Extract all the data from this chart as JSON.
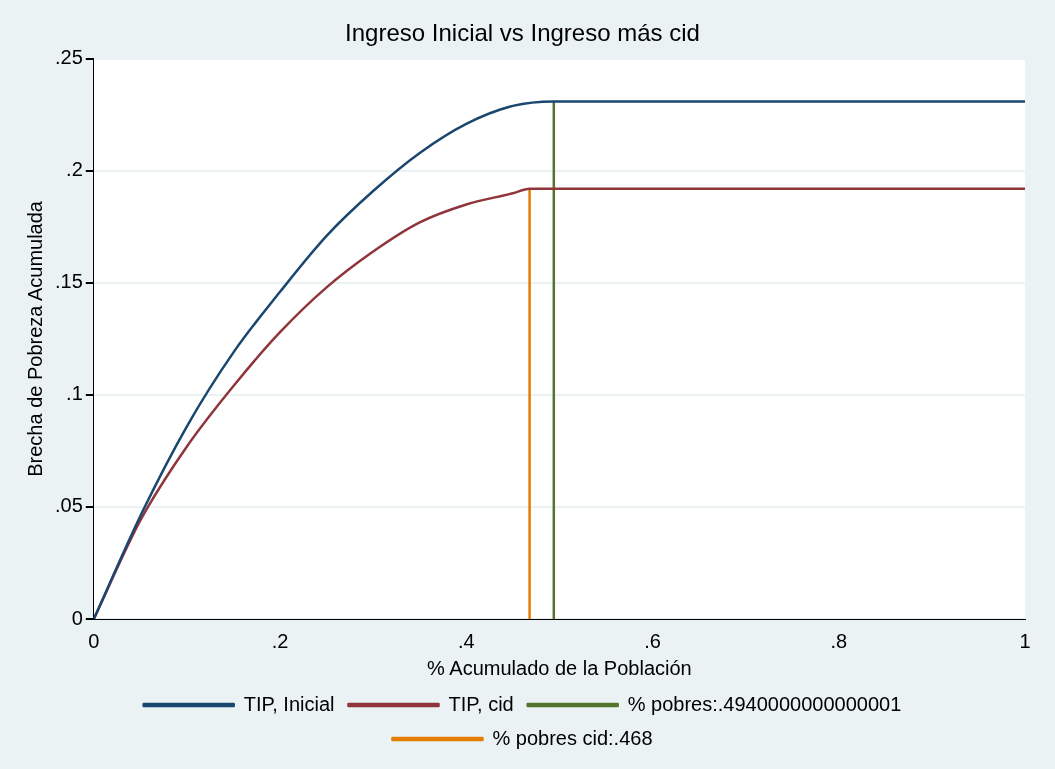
{
  "chart_data": {
    "type": "line",
    "title": "Ingreso Inicial vs Ingreso más cid",
    "xlabel": "% Acumulado de la Población",
    "ylabel": "Brecha de Pobreza Acumulada",
    "xlim": [
      0,
      1
    ],
    "xticks": [
      0,
      {
        "value": 0.2,
        "label": ".2"
      },
      {
        "value": 0.4,
        "label": ".4"
      },
      {
        "value": 0.6,
        "label": ".6"
      },
      {
        "value": 0.8,
        "label": ".8"
      },
      1
    ],
    "ylim": [
      0,
      0.25
    ],
    "yticks": [
      0,
      {
        "value": 0.05,
        "label": ".05"
      },
      {
        "value": 0.1,
        "label": ".1"
      },
      {
        "value": 0.15,
        "label": ".15"
      },
      {
        "value": 0.2,
        "label": ".2"
      },
      {
        "value": 0.25,
        "label": ".25"
      }
    ],
    "grid": "y",
    "legend": "bottom",
    "marker": "none",
    "line_style": "solid",
    "series": [
      {
        "name": "TIP, Inicial",
        "color": "#1a476f",
        "x": [
          0,
          0.05,
          0.1,
          0.15,
          0.2,
          0.25,
          0.3,
          0.35,
          0.4,
          0.45,
          0.494,
          1
        ],
        "values": [
          0,
          0.046,
          0.086,
          0.119,
          0.146,
          0.171,
          0.191,
          0.208,
          0.221,
          0.229,
          0.231,
          0.231
        ]
      },
      {
        "name": "TIP, cid",
        "color": "#90353b",
        "x": [
          0,
          0.05,
          0.1,
          0.15,
          0.2,
          0.25,
          0.3,
          0.35,
          0.4,
          0.45,
          0.468,
          1
        ],
        "values": [
          0,
          0.044,
          0.077,
          0.104,
          0.128,
          0.148,
          0.164,
          0.177,
          0.185,
          0.19,
          0.192,
          0.192
        ]
      },
      {
        "name": "% pobres:.4940000000000001",
        "color": "#55752f",
        "x": [
          0.494,
          0.494
        ],
        "values": [
          0,
          0.231
        ]
      },
      {
        "name": "% pobres cid:.468",
        "color": "#e37e00",
        "x": [
          0.468,
          0.468
        ],
        "values": [
          0,
          0.192
        ]
      }
    ]
  }
}
